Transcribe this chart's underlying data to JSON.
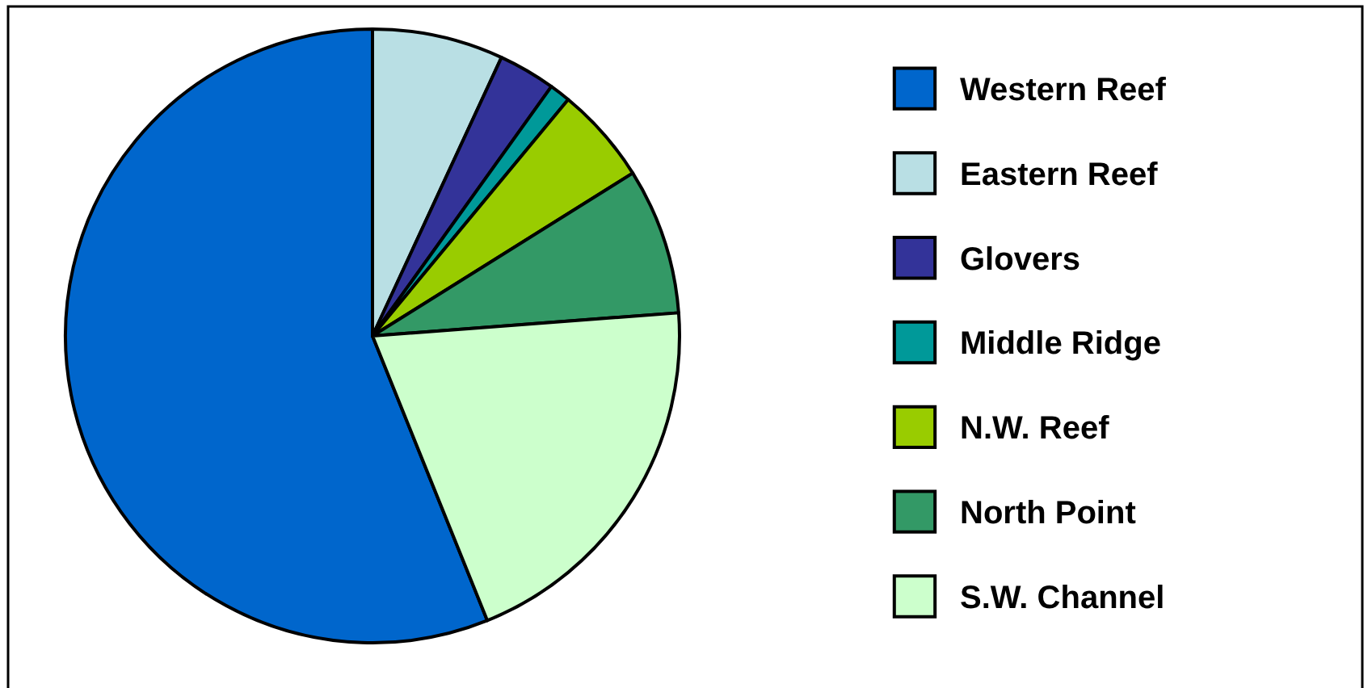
{
  "chart_data": {
    "type": "pie",
    "categories": [
      "Western Reef",
      "Eastern Reef",
      "Glovers",
      "Middle Ridge",
      "N.W. Reef",
      "North Point",
      "S.W. Channel"
    ],
    "values": [
      56.1,
      6.9,
      3.0,
      1.1,
      5.1,
      7.7,
      20.1
    ],
    "colors": [
      "#0066cc",
      "#b9dfe4",
      "#333399",
      "#009999",
      "#99cc00",
      "#339966",
      "#ccffcc"
    ],
    "legend": "right"
  }
}
